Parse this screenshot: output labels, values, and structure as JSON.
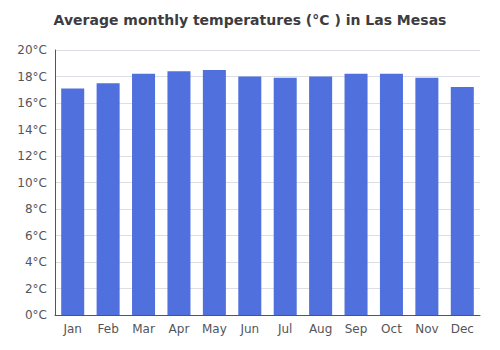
{
  "chart_data": {
    "type": "bar",
    "title": "Average monthly temperatures (°C ) in Las Mesas",
    "categories": [
      "Jan",
      "Feb",
      "Mar",
      "Apr",
      "May",
      "Jun",
      "Jul",
      "Aug",
      "Sep",
      "Oct",
      "Nov",
      "Dec"
    ],
    "values": [
      17.1,
      17.5,
      18.2,
      18.4,
      18.5,
      18.0,
      17.9,
      18.0,
      18.2,
      18.2,
      17.9,
      17.2
    ],
    "ylim": [
      0,
      20
    ],
    "yticks": [
      {
        "value": 0,
        "label": "0°C"
      },
      {
        "value": 2,
        "label": "2°C"
      },
      {
        "value": 4,
        "label": "4°C"
      },
      {
        "value": 6,
        "label": "6°C"
      },
      {
        "value": 8,
        "label": "8°C"
      },
      {
        "value": 10,
        "label": "10°C"
      },
      {
        "value": 12,
        "label": "12°C"
      },
      {
        "value": 14,
        "label": "14°C"
      },
      {
        "value": 16,
        "label": "16°C"
      },
      {
        "value": 18,
        "label": "18°C"
      },
      {
        "value": 20,
        "label": "20°C"
      }
    ],
    "grid": true
  }
}
